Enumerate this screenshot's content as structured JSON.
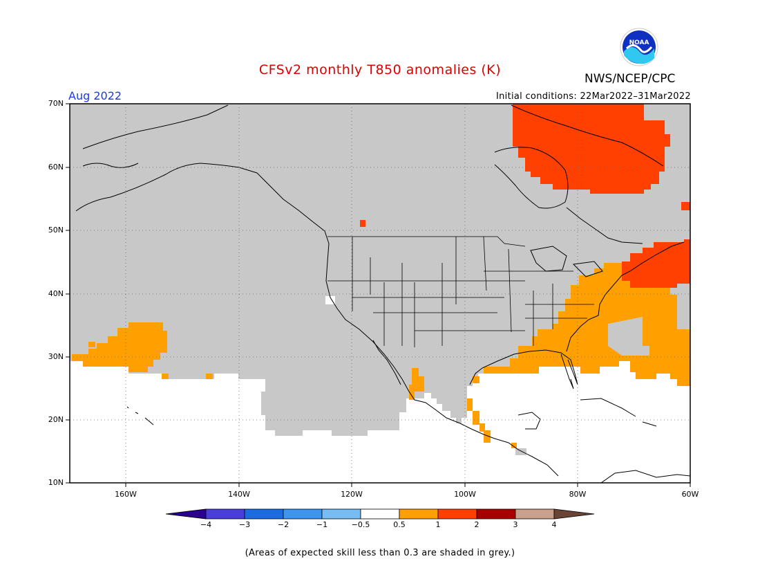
{
  "header": {
    "title": "CFSv2 monthly T850 anomalies (K)",
    "agency": "NWS/NCEP/CPC",
    "logo_text": "NOAA",
    "month": "Aug 2022",
    "initial_conditions": "Initial conditions: 22Mar2022–31Mar2022"
  },
  "map": {
    "projection": "lat-lon",
    "lon_range": [
      -171,
      -60
    ],
    "lat_range": [
      10,
      70
    ],
    "lat_labels": [
      "70N",
      "60N",
      "50N",
      "40N",
      "30N",
      "20N",
      "10N"
    ],
    "lon_labels": [
      "160W",
      "140W",
      "120W",
      "100W",
      "80W",
      "60W"
    ],
    "gridlines": "dotted",
    "shading": {
      "low_skill": "grey",
      "near_normal": "white",
      "warm_0.5_1": "orange",
      "warm_1_2": "red-orange"
    },
    "colors": {
      "grey": "#c8c8c8",
      "orange": "#ffa000",
      "red_orange": "#ff4000",
      "red_dot": "#ff3000"
    }
  },
  "colorbar": {
    "labels": [
      "−4",
      "−3",
      "−2",
      "−1",
      "−0.5",
      "0.5",
      "1",
      "2",
      "3",
      "4"
    ],
    "colors": [
      "#2a0090",
      "#4a3ed8",
      "#1c6ce0",
      "#3c96f0",
      "#78bcf4",
      "#ffffff",
      "#ffa000",
      "#ff4000",
      "#a80000",
      "#c8a08c",
      "#6a4434"
    ]
  },
  "footnote": "(Areas of expected skill less than 0.3 are shaded in grey.)"
}
